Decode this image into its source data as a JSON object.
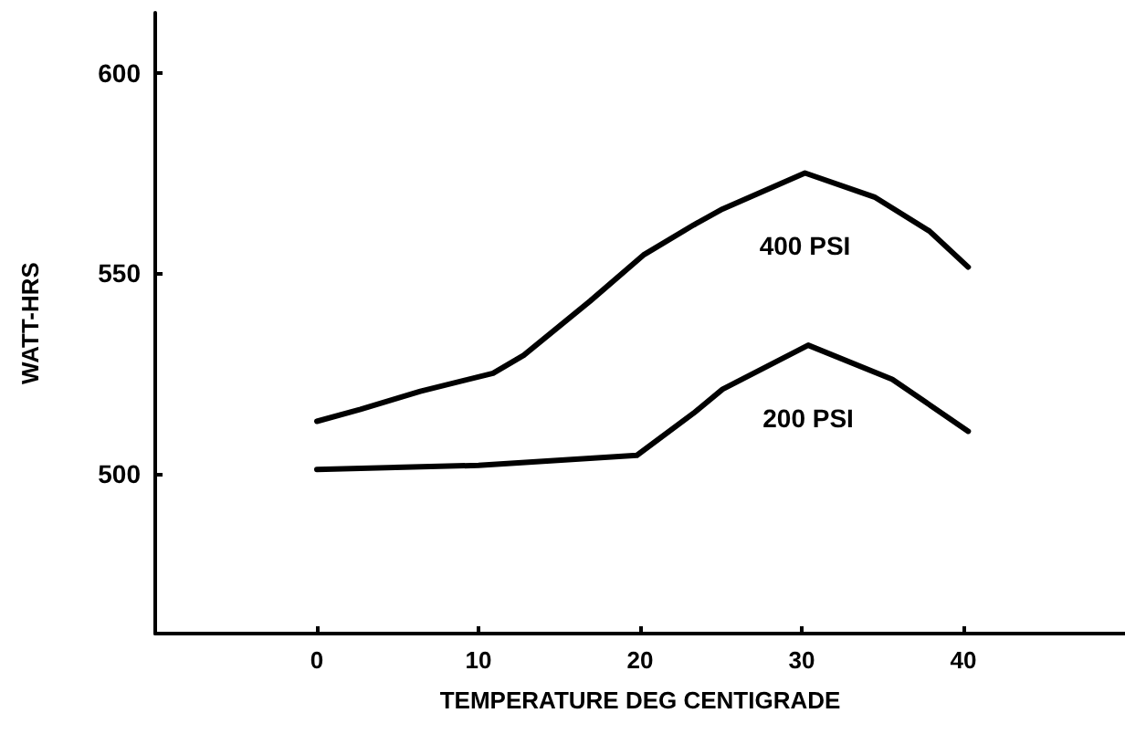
{
  "chart_data": {
    "type": "line",
    "xlabel": "TEMPERATURE DEG CENTIGRADE",
    "ylabel": "WATT-HRS",
    "xlim": [
      -10,
      50
    ],
    "xticks": [
      0,
      10,
      20,
      30,
      40
    ],
    "ylim": [
      460,
      615
    ],
    "yticks": [
      500,
      550,
      600
    ],
    "grid": false,
    "legend": false,
    "marker": "none",
    "line_style": "solid",
    "series": [
      {
        "name": "400 PSI",
        "color": "#000000",
        "x": [
          0,
          2.7,
          6.4,
          10.9,
          12.8,
          16.9,
          20.2,
          23.3,
          25.1,
          30.2,
          34.5,
          37.9,
          40.3
        ],
        "values": [
          513,
          516,
          520.5,
          525,
          529.5,
          543,
          554.5,
          562,
          566,
          575,
          569,
          560.5,
          551.5
        ]
      },
      {
        "name": "200 PSI",
        "color": "#000000",
        "x": [
          0,
          10,
          19.8,
          23.3,
          25.1,
          30.4,
          35.6,
          40.3
        ],
        "values": [
          501,
          502,
          504.5,
          515,
          521,
          532,
          523.5,
          510.5
        ]
      }
    ]
  }
}
